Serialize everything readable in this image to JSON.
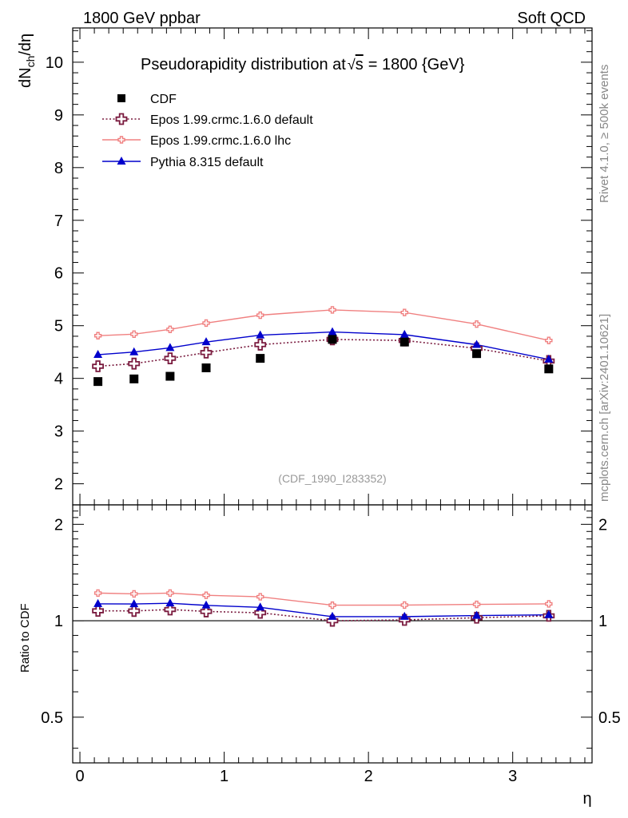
{
  "header": {
    "left": "1800 GeV ppbar",
    "right": "Soft QCD"
  },
  "side_labels": {
    "rivet": "Rivet 4.1.0, ≥ 500k events",
    "mcplots": "mcplots.cern.ch [arXiv:2401.10621]"
  },
  "colors": {
    "cdf": "#000000",
    "epos_default": "#7a1b3f",
    "epos_lhc": "#f08080",
    "pythia": "#0000cc"
  },
  "chart_data": [
    {
      "type": "scatter",
      "panel": "main",
      "title": "Pseudorapidity distribution at √s = 1800 {GeV}",
      "title_prefix": "Pseudorapidity distribution at",
      "title_root_arg": "s",
      "title_suffix": "= 1800 {GeV}",
      "analysis_tag": "(CDF_1990_I283352)",
      "ylabel": "dN_ch/dη",
      "ylabel_main": "dN",
      "ylabel_sub": "ch",
      "ylabel_tail": "/dη",
      "xlabel": "η",
      "xlim": [
        -0.05,
        3.55
      ],
      "ylim": [
        1.6,
        10.65
      ],
      "yticks": [
        2,
        3,
        4,
        5,
        6,
        7,
        8,
        9,
        10
      ],
      "x": [
        0.125,
        0.375,
        0.625,
        0.875,
        1.25,
        1.75,
        2.25,
        2.75,
        3.25
      ],
      "series": [
        {
          "key": "cdf",
          "name": "CDF",
          "marker": "square",
          "line": "none",
          "values": [
            3.94,
            3.99,
            4.04,
            4.2,
            4.38,
            4.74,
            4.69,
            4.47,
            4.18
          ]
        },
        {
          "key": "epos_default",
          "name": "Epos 1.99.crmc.1.6.0 default",
          "marker": "open-cross",
          "line": "dotted",
          "values": [
            4.23,
            4.28,
            4.38,
            4.49,
            4.64,
            4.74,
            4.72,
            4.57,
            4.33
          ]
        },
        {
          "key": "epos_lhc",
          "name": "Epos 1.99.crmc.1.6.0 lhc",
          "marker": "small-cross",
          "line": "solid",
          "values": [
            4.81,
            4.84,
            4.93,
            5.05,
            5.2,
            5.3,
            5.25,
            5.03,
            4.72
          ]
        },
        {
          "key": "pythia",
          "name": "Pythia 8.315 default",
          "marker": "triangle",
          "line": "solid",
          "values": [
            4.45,
            4.5,
            4.58,
            4.69,
            4.82,
            4.88,
            4.83,
            4.64,
            4.36
          ]
        }
      ]
    },
    {
      "type": "line",
      "panel": "ratio",
      "ylabel": "Ratio to CDF",
      "xlabel": "η",
      "xlim": [
        -0.05,
        3.55
      ],
      "ylim": [
        0.36,
        2.3
      ],
      "yticks": [
        0.5,
        1,
        2
      ],
      "ytick_labels": [
        "0.5",
        "1",
        "2"
      ],
      "xticks": [
        0,
        1,
        2,
        3
      ],
      "xtick_labels": [
        "0",
        "1",
        "2",
        "3"
      ],
      "reference": 1,
      "x": [
        0.125,
        0.375,
        0.625,
        0.875,
        1.25,
        1.75,
        2.25,
        2.75,
        3.25
      ],
      "series": [
        {
          "key": "epos_default",
          "name": "Epos 1.99.crmc.1.6.0 default",
          "values": [
            1.074,
            1.073,
            1.084,
            1.069,
            1.059,
            1.0,
            1.006,
            1.022,
            1.036
          ]
        },
        {
          "key": "epos_lhc",
          "name": "Epos 1.99.crmc.1.6.0 lhc",
          "values": [
            1.22,
            1.213,
            1.22,
            1.201,
            1.188,
            1.118,
            1.119,
            1.125,
            1.129
          ]
        },
        {
          "key": "pythia",
          "name": "Pythia 8.315 default",
          "values": [
            1.129,
            1.128,
            1.134,
            1.117,
            1.101,
            1.03,
            1.03,
            1.038,
            1.043
          ]
        }
      ]
    }
  ]
}
